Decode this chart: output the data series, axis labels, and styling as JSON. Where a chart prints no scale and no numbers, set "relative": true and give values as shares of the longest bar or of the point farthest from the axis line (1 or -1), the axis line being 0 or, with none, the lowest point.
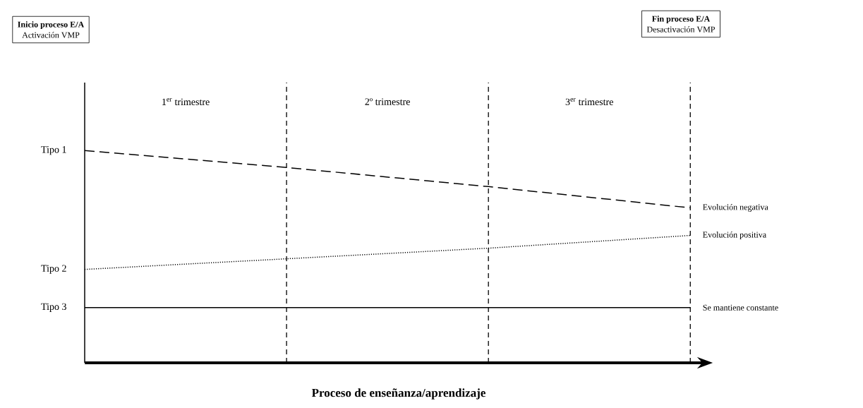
{
  "chart_data": {
    "type": "line",
    "relative": true,
    "legend": false,
    "categories": [
      null,
      null,
      null,
      null
    ],
    "series": [
      {
        "name": "Evolución negativa",
        "color": "#000000",
        "line_style": "dashed",
        "values": [
          1,
          0.92,
          0.83,
          0.73
        ]
      },
      {
        "name": "Evolución positiva",
        "color": "#000000",
        "line_style": "dotted",
        "values": [
          0.44,
          0.49,
          0.54,
          0.6
        ]
      },
      {
        "name": "Se mantiene constante",
        "color": "#000000",
        "line_style": "solid",
        "values": [
          0.26,
          0.26,
          0.26,
          0.26
        ]
      }
    ],
    "xlabel": "Proceso de enseñanza/aprendizaje",
    "annotations": [
      "Inicio proceso E/A",
      "Activación VMP",
      "Fin proceso E/A",
      "Desactivación VMP",
      "1$^{er}$ trimestre",
      "2º trimestre",
      "3$^{er}$ trimestre",
      "Tipo 1",
      "Tipo 2",
      "Tipo 3"
    ]
  }
}
